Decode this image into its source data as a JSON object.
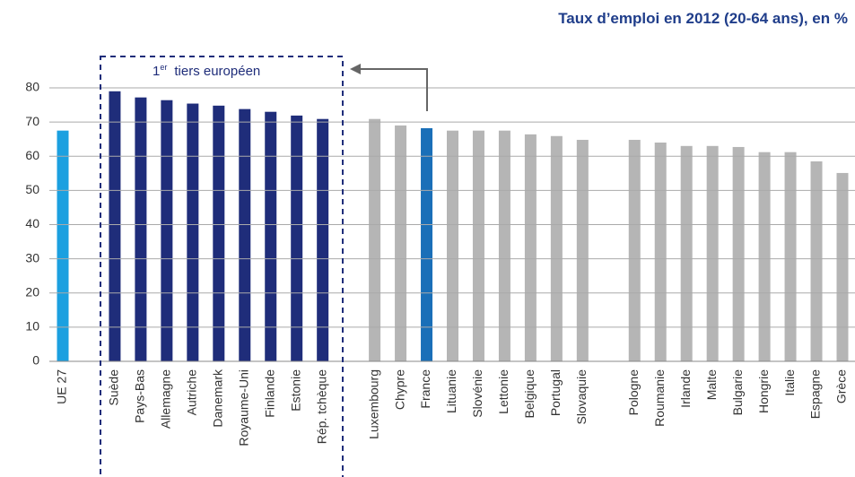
{
  "chart_data": {
    "type": "bar",
    "title": "Taux d’emploi en 2012 (20-64 ans), en %",
    "annotation": {
      "number": "1",
      "sup": "er",
      "text": "tiers européen"
    },
    "categories": [
      "UE 27",
      null,
      "Suède",
      "Pays-Bas",
      "Allemagne",
      "Autriche",
      "Danemark",
      "Royaume-Uni",
      "Finlande",
      "Estonie",
      "Rép. tchèque",
      null,
      "Luxembourg",
      "Chypre",
      "France",
      "Lituanie",
      "Slovénie",
      "Lettonie",
      "Belgique",
      "Portugal",
      "Slovaquie",
      null,
      "Pologne",
      "Roumanie",
      "Irlande",
      "Malte",
      "Bulgarie",
      "Hongrie",
      "Italie",
      "Espagne",
      "Grèce"
    ],
    "values": [
      67.5,
      null,
      79,
      77.2,
      76.4,
      75.4,
      74.8,
      73.8,
      73,
      71.9,
      70.9,
      null,
      70.9,
      69,
      68.2,
      67.5,
      67.5,
      67.5,
      66.4,
      65.9,
      64.8,
      null,
      64.8,
      64,
      63,
      63,
      62.7,
      61.2,
      61.2,
      58.5,
      55.1
    ],
    "colors": [
      "#1ba0e0",
      null,
      "#1f2d7a",
      "#1f2d7a",
      "#1f2d7a",
      "#1f2d7a",
      "#1f2d7a",
      "#1f2d7a",
      "#1f2d7a",
      "#1f2d7a",
      "#1f2d7a",
      null,
      "#b5b5b5",
      "#b5b5b5",
      "#1a6fb8",
      "#b5b5b5",
      "#b5b5b5",
      "#b5b5b5",
      "#b5b5b5",
      "#b5b5b5",
      "#b5b5b5",
      null,
      "#b5b5b5",
      "#b5b5b5",
      "#b5b5b5",
      "#b5b5b5",
      "#b5b5b5",
      "#b5b5b5",
      "#b5b5b5",
      "#b5b5b5",
      "#b5b5b5"
    ],
    "ylim": [
      0,
      80
    ],
    "yticks": [
      0,
      10,
      20,
      30,
      40,
      50,
      60,
      70,
      80
    ],
    "grid": true
  }
}
